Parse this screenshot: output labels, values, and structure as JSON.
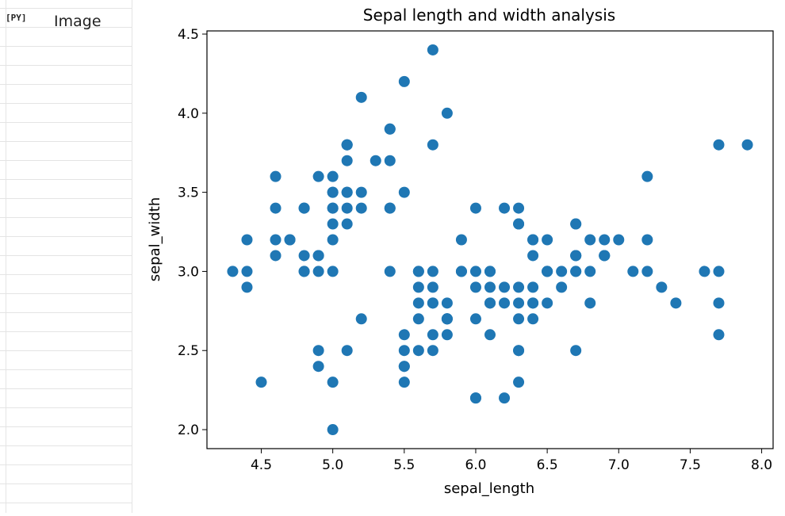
{
  "cell": {
    "badge": "[PY]",
    "label": "Image"
  },
  "chart_data": {
    "type": "scatter",
    "title": "Sepal length and width analysis",
    "xlabel": "sepal_length",
    "ylabel": "sepal_width",
    "xlim": [
      4.12,
      8.08
    ],
    "ylim": [
      1.88,
      4.52
    ],
    "xticks": [
      4.5,
      5.0,
      5.5,
      6.0,
      6.5,
      7.0,
      7.5,
      8.0
    ],
    "yticks": [
      2.0,
      2.5,
      3.0,
      3.5,
      4.0,
      4.5
    ],
    "xtick_labels": [
      "4.5",
      "5.0",
      "5.5",
      "6.0",
      "6.5",
      "7.0",
      "7.5",
      "8.0"
    ],
    "ytick_labels": [
      "2.0",
      "2.5",
      "3.0",
      "3.5",
      "4.0",
      "4.5"
    ],
    "color": "#1f77b4",
    "grid": false,
    "points": [
      [
        5.1,
        3.5
      ],
      [
        4.9,
        3.0
      ],
      [
        4.7,
        3.2
      ],
      [
        4.6,
        3.1
      ],
      [
        5.0,
        3.6
      ],
      [
        5.4,
        3.9
      ],
      [
        4.6,
        3.4
      ],
      [
        5.0,
        3.4
      ],
      [
        4.4,
        2.9
      ],
      [
        4.9,
        3.1
      ],
      [
        5.4,
        3.7
      ],
      [
        4.8,
        3.4
      ],
      [
        4.8,
        3.0
      ],
      [
        4.3,
        3.0
      ],
      [
        5.8,
        4.0
      ],
      [
        5.7,
        4.4
      ],
      [
        5.4,
        3.9
      ],
      [
        5.1,
        3.5
      ],
      [
        5.7,
        3.8
      ],
      [
        5.1,
        3.8
      ],
      [
        5.4,
        3.4
      ],
      [
        5.1,
        3.7
      ],
      [
        4.6,
        3.6
      ],
      [
        5.1,
        3.3
      ],
      [
        4.8,
        3.4
      ],
      [
        5.0,
        3.0
      ],
      [
        5.0,
        3.4
      ],
      [
        5.2,
        3.5
      ],
      [
        5.2,
        3.4
      ],
      [
        4.7,
        3.2
      ],
      [
        4.8,
        3.1
      ],
      [
        5.4,
        3.4
      ],
      [
        5.2,
        4.1
      ],
      [
        5.5,
        4.2
      ],
      [
        4.9,
        3.1
      ],
      [
        5.0,
        3.2
      ],
      [
        5.5,
        3.5
      ],
      [
        4.9,
        3.6
      ],
      [
        4.4,
        3.0
      ],
      [
        5.1,
        3.4
      ],
      [
        5.0,
        3.5
      ],
      [
        4.5,
        2.3
      ],
      [
        4.4,
        3.2
      ],
      [
        5.0,
        3.5
      ],
      [
        5.1,
        3.8
      ],
      [
        4.8,
        3.0
      ],
      [
        5.1,
        3.8
      ],
      [
        4.6,
        3.2
      ],
      [
        5.3,
        3.7
      ],
      [
        5.0,
        3.3
      ],
      [
        7.0,
        3.2
      ],
      [
        6.4,
        3.2
      ],
      [
        6.9,
        3.1
      ],
      [
        5.5,
        2.3
      ],
      [
        6.5,
        2.8
      ],
      [
        5.7,
        2.8
      ],
      [
        6.3,
        3.3
      ],
      [
        4.9,
        2.4
      ],
      [
        6.6,
        2.9
      ],
      [
        5.2,
        2.7
      ],
      [
        5.0,
        2.0
      ],
      [
        5.9,
        3.0
      ],
      [
        6.0,
        2.2
      ],
      [
        6.1,
        2.9
      ],
      [
        5.6,
        2.9
      ],
      [
        6.7,
        3.1
      ],
      [
        5.6,
        3.0
      ],
      [
        5.8,
        2.7
      ],
      [
        6.2,
        2.2
      ],
      [
        5.6,
        2.5
      ],
      [
        5.9,
        3.2
      ],
      [
        6.1,
        2.8
      ],
      [
        6.3,
        2.5
      ],
      [
        6.1,
        2.8
      ],
      [
        6.4,
        2.9
      ],
      [
        6.6,
        3.0
      ],
      [
        6.8,
        2.8
      ],
      [
        6.7,
        3.0
      ],
      [
        6.0,
        2.9
      ],
      [
        5.7,
        2.6
      ],
      [
        5.5,
        2.4
      ],
      [
        5.5,
        2.4
      ],
      [
        5.8,
        2.7
      ],
      [
        6.0,
        2.7
      ],
      [
        5.4,
        3.0
      ],
      [
        6.0,
        3.4
      ],
      [
        6.7,
        3.1
      ],
      [
        6.3,
        2.3
      ],
      [
        5.6,
        3.0
      ],
      [
        5.5,
        2.5
      ],
      [
        5.5,
        2.6
      ],
      [
        6.1,
        3.0
      ],
      [
        5.8,
        2.6
      ],
      [
        5.0,
        2.3
      ],
      [
        5.6,
        2.7
      ],
      [
        5.7,
        3.0
      ],
      [
        5.7,
        2.9
      ],
      [
        6.2,
        2.9
      ],
      [
        5.1,
        2.5
      ],
      [
        5.7,
        2.8
      ],
      [
        6.3,
        3.3
      ],
      [
        5.8,
        2.7
      ],
      [
        7.1,
        3.0
      ],
      [
        6.3,
        2.9
      ],
      [
        6.5,
        3.0
      ],
      [
        7.6,
        3.0
      ],
      [
        4.9,
        2.5
      ],
      [
        7.3,
        2.9
      ],
      [
        6.7,
        2.5
      ],
      [
        7.2,
        3.6
      ],
      [
        6.5,
        3.2
      ],
      [
        6.4,
        2.7
      ],
      [
        6.8,
        3.0
      ],
      [
        5.7,
        2.5
      ],
      [
        5.8,
        2.8
      ],
      [
        6.4,
        3.2
      ],
      [
        6.5,
        3.0
      ],
      [
        7.7,
        3.8
      ],
      [
        7.7,
        2.6
      ],
      [
        6.0,
        2.2
      ],
      [
        6.9,
        3.2
      ],
      [
        5.6,
        2.8
      ],
      [
        7.7,
        2.8
      ],
      [
        6.3,
        2.7
      ],
      [
        6.7,
        3.3
      ],
      [
        7.2,
        3.2
      ],
      [
        6.2,
        2.8
      ],
      [
        6.1,
        3.0
      ],
      [
        6.4,
        2.8
      ],
      [
        7.2,
        3.0
      ],
      [
        7.4,
        2.8
      ],
      [
        7.9,
        3.8
      ],
      [
        6.4,
        2.8
      ],
      [
        6.3,
        2.8
      ],
      [
        6.1,
        2.6
      ],
      [
        7.7,
        3.0
      ],
      [
        6.3,
        3.4
      ],
      [
        6.4,
        3.1
      ],
      [
        6.0,
        3.0
      ],
      [
        6.9,
        3.1
      ],
      [
        6.7,
        3.1
      ],
      [
        6.9,
        3.1
      ],
      [
        5.8,
        2.7
      ],
      [
        6.8,
        3.2
      ],
      [
        6.7,
        3.3
      ],
      [
        6.7,
        3.0
      ],
      [
        6.3,
        2.5
      ],
      [
        6.5,
        3.0
      ],
      [
        6.2,
        3.4
      ],
      [
        5.9,
        3.0
      ]
    ]
  }
}
